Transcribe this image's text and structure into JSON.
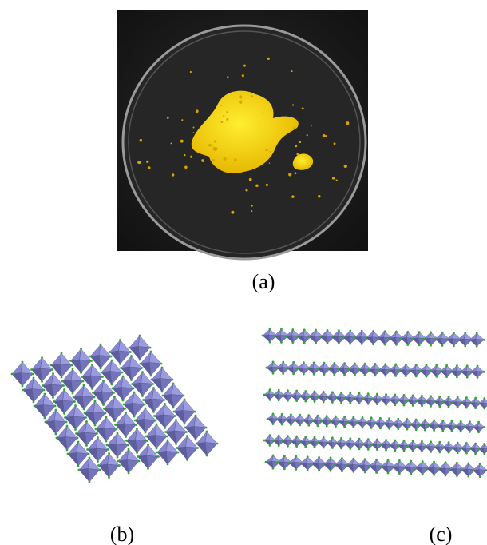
{
  "labels": [
    "(a)",
    "(b)",
    "(c)"
  ]
}
